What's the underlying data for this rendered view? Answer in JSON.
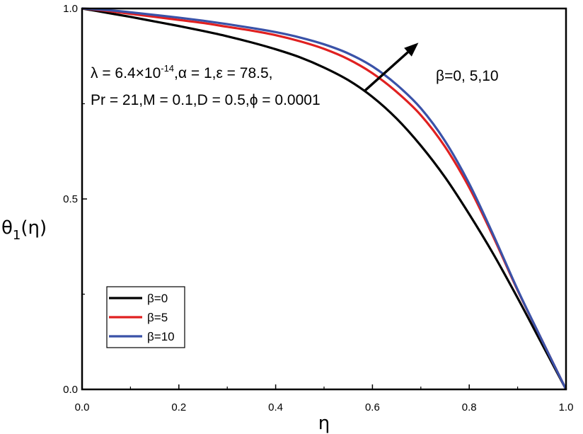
{
  "chart_data": {
    "type": "line",
    "xlabel": "η",
    "ylabel": {
      "main": "θ",
      "sub": "1",
      "suffix": "(η)"
    },
    "xlim": [
      0.0,
      1.0
    ],
    "ylim": [
      0.0,
      1.0
    ],
    "xticks": [
      "0.0",
      "0.2",
      "0.4",
      "0.6",
      "0.8",
      "1.0"
    ],
    "yticks": [
      "0.0",
      "0.5",
      "1.0"
    ],
    "grid": false,
    "legend_position": "bottom-left",
    "series": [
      {
        "name": "β=0",
        "color": "#000000",
        "x": [
          0.0,
          0.05,
          0.1,
          0.15,
          0.2,
          0.25,
          0.3,
          0.35,
          0.4,
          0.45,
          0.5,
          0.55,
          0.6,
          0.65,
          0.7,
          0.75,
          0.8,
          0.85,
          0.9,
          0.95,
          1.0
        ],
        "y": [
          1.0,
          0.989,
          0.978,
          0.966,
          0.954,
          0.941,
          0.927,
          0.911,
          0.893,
          0.872,
          0.845,
          0.812,
          0.768,
          0.711,
          0.64,
          0.557,
          0.46,
          0.355,
          0.24,
          0.12,
          0.0
        ]
      },
      {
        "name": "β=5",
        "color": "#e02020",
        "x": [
          0.0,
          0.05,
          0.1,
          0.15,
          0.2,
          0.25,
          0.3,
          0.35,
          0.4,
          0.45,
          0.5,
          0.55,
          0.6,
          0.65,
          0.7,
          0.75,
          0.8,
          0.85,
          0.9,
          0.95,
          1.0
        ],
        "y": [
          1.0,
          0.994,
          0.986,
          0.978,
          0.97,
          0.962,
          0.952,
          0.942,
          0.93,
          0.914,
          0.894,
          0.867,
          0.83,
          0.781,
          0.72,
          0.637,
          0.53,
          0.4,
          0.26,
          0.13,
          0.0
        ]
      },
      {
        "name": "β=10",
        "color": "#3a52a8",
        "x": [
          0.0,
          0.05,
          0.1,
          0.15,
          0.2,
          0.25,
          0.3,
          0.35,
          0.4,
          0.45,
          0.5,
          0.55,
          0.6,
          0.65,
          0.7,
          0.75,
          0.8,
          0.85,
          0.9,
          0.95,
          1.0
        ],
        "y": [
          1.0,
          0.996,
          0.99,
          0.983,
          0.976,
          0.968,
          0.959,
          0.949,
          0.938,
          0.924,
          0.906,
          0.882,
          0.848,
          0.8,
          0.738,
          0.652,
          0.54,
          0.405,
          0.262,
          0.13,
          0.0
        ]
      }
    ],
    "annotations": {
      "params_line1_parts": [
        "λ = 6.4×10",
        "-14",
        ",α = 1,ε = 78.5,"
      ],
      "params_line2": "Pr = 21,M = 0.1,D = 0.5,ϕ = 0.0001",
      "arrow_label": "β=0, 5,10",
      "arrow": {
        "from": [
          0.585,
          0.785
        ],
        "to": [
          0.695,
          0.91
        ]
      }
    }
  }
}
